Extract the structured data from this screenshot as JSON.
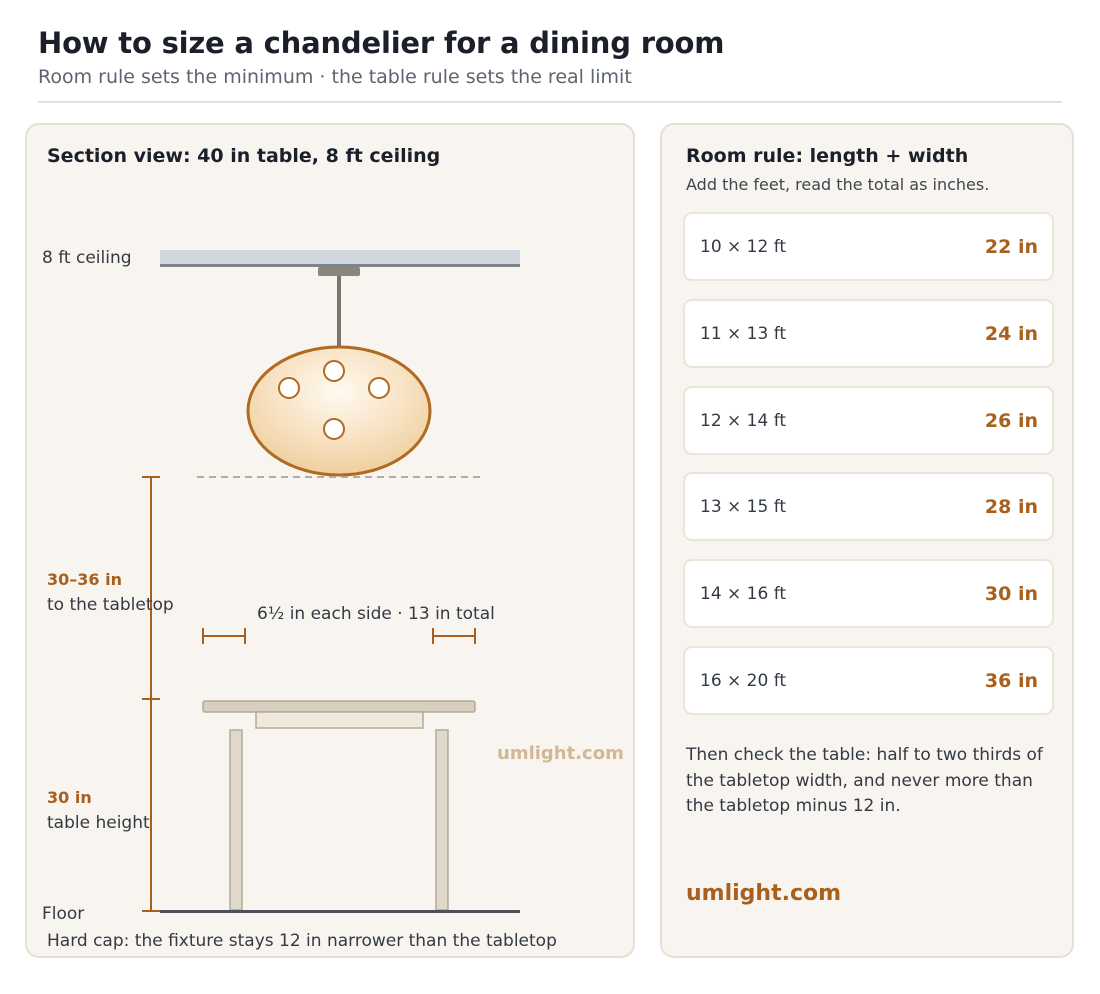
{
  "header": {
    "title": "How to size a chandelier for a dining room",
    "subtitle": "Room rule sets the minimum · the table rule sets the real limit"
  },
  "section_view": {
    "title": "Section view: 40 in table, 8 ft ceiling",
    "ceiling_label": "8 ft ceiling",
    "clearance_value": "30–36 in",
    "clearance_desc": "to the tabletop",
    "side_margin_label": "6½ in each side · 13 in total",
    "watermark": "umlight.com",
    "table_height_value": "30 in",
    "table_height_desc": "table height",
    "floor_label": "Floor",
    "caption": "Hard cap: the fixture stays 12 in narrower than the tabletop"
  },
  "room_rule": {
    "title": "Room rule: length + width",
    "subtitle": "Add the feet, read the total as inches.",
    "rows": [
      {
        "room": "10 × 12 ft",
        "size": "22 in"
      },
      {
        "room": "11 × 13 ft",
        "size": "24 in"
      },
      {
        "room": "12 × 14 ft",
        "size": "26 in"
      },
      {
        "room": "13 × 15 ft",
        "size": "28 in"
      },
      {
        "room": "14 × 16 ft",
        "size": "30 in"
      },
      {
        "room": "16 × 20 ft",
        "size": "36 in"
      }
    ],
    "note": "Then check the table: half to two thirds of the tabletop width, and never more than the tabletop minus 12 in.",
    "brand": "umlight.com"
  },
  "colors": {
    "accent": "#a8601e",
    "panel_bg": "#f8f4ef",
    "panel_border": "#e6dfd4",
    "ceiling": "#cfd6dd",
    "table": "#d9cfbf",
    "shade_edge": "#b06b22"
  }
}
